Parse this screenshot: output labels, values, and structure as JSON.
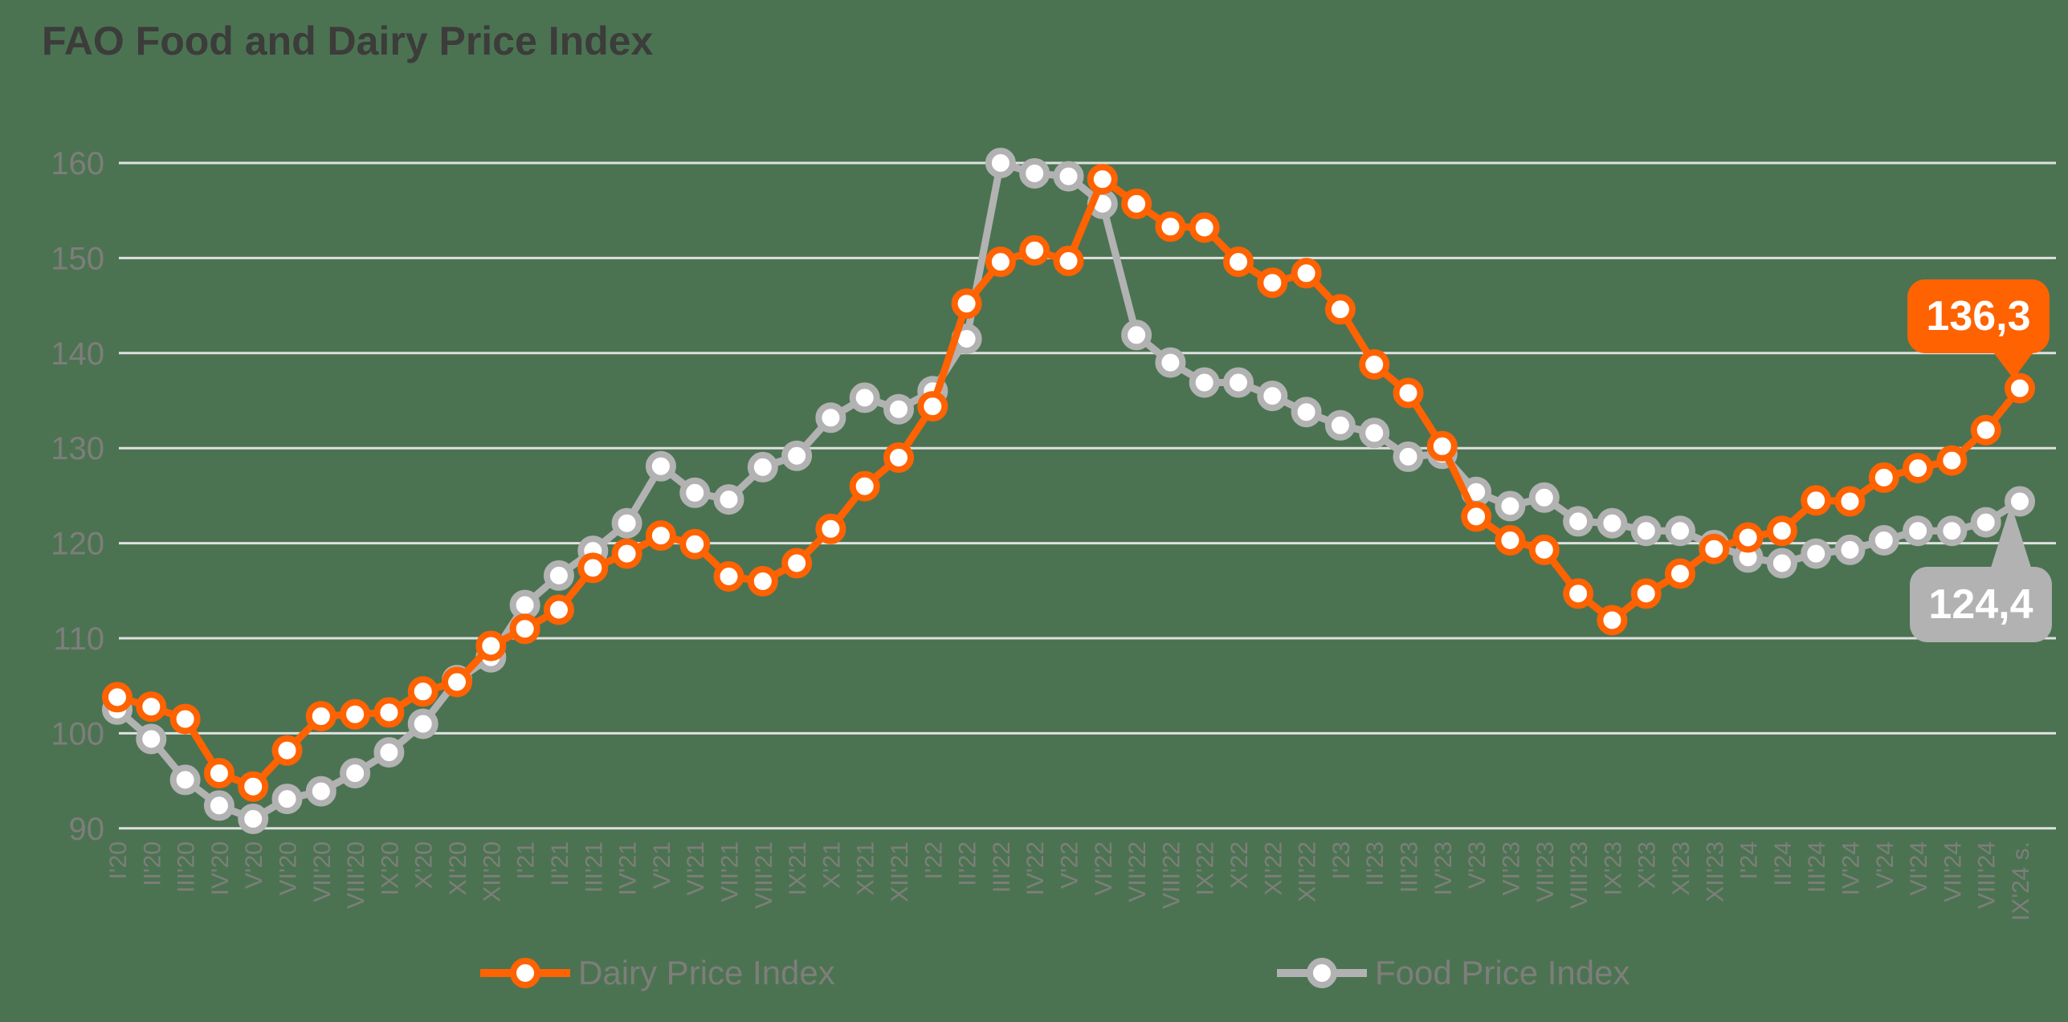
{
  "title": "FAO Food and Dairy Price Index",
  "colors": {
    "background": "#4b7352",
    "dairy_orange": "#ff6200",
    "food_gray": "#b2b2b2",
    "grid": "#e0e0e0",
    "axis_text": "#7e7e7a",
    "legend_text": "#7e7e7a",
    "title_text": "#3c3c3b",
    "marker_fill": "#ffffff",
    "callout_text": "#ffffff"
  },
  "legend": {
    "items": [
      {
        "label": "Dairy Price Index",
        "color": "#ff6200"
      },
      {
        "label": "Food Price Index",
        "color": "#b2b2b2"
      }
    ]
  },
  "callouts": {
    "dairy": {
      "label": "136,3",
      "value": 136.3,
      "series": "Dairy Price Index",
      "category": "IX'24 s."
    },
    "food": {
      "label": "124,4",
      "value": 124.4,
      "series": "Food Price Index",
      "category": "IX'24 s."
    }
  },
  "chart_data": {
    "type": "line",
    "title": "FAO Food and Dairy Price Index",
    "xlabel": "",
    "ylabel": "",
    "ylim": [
      90,
      160
    ],
    "yticks": [
      90,
      100,
      110,
      120,
      130,
      140,
      150,
      160
    ],
    "grid": "horizontal",
    "legend_position": "bottom",
    "categories": [
      "I'20",
      "II'20",
      "III'20",
      "IV'20",
      "V'20",
      "VI'20",
      "VII'20",
      "VIII'20",
      "IX'20",
      "X'20",
      "XI'20",
      "XII'20",
      "I'21",
      "II'21",
      "III'21",
      "IV'21",
      "V'21",
      "VI'21",
      "VII'21",
      "VIII'21",
      "IX'21",
      "X'21",
      "XI'21",
      "XII'21",
      "I'22",
      "II'22",
      "III'22",
      "IV'22",
      "V'22",
      "VI'22",
      "VII'22",
      "VIII'22",
      "IX'22",
      "X'22",
      "XI'22",
      "XII'22",
      "I'23",
      "II'23",
      "III'23",
      "IV'23",
      "V'23",
      "VI'23",
      "VII'23",
      "VIII'23",
      "IX'23",
      "X'23",
      "XI'23",
      "XII'23",
      "I'24",
      "II'24",
      "III'24",
      "IV'24",
      "V'24",
      "VI'24",
      "VII'24",
      "VIII'24",
      "IX'24 s."
    ],
    "series": [
      {
        "name": "Dairy Price Index",
        "color": "#ff6200",
        "values": [
          103.8,
          102.8,
          101.5,
          95.8,
          94.4,
          98.2,
          101.8,
          102.0,
          102.2,
          104.4,
          105.4,
          109.2,
          111.0,
          113.0,
          117.4,
          118.9,
          120.8,
          119.9,
          116.5,
          116.0,
          117.9,
          121.5,
          126.0,
          129.0,
          134.4,
          145.2,
          149.6,
          150.8,
          149.7,
          158.3,
          155.7,
          153.3,
          153.2,
          149.6,
          147.4,
          148.4,
          144.6,
          138.8,
          135.8,
          130.2,
          122.8,
          120.3,
          119.3,
          114.7,
          111.9,
          114.7,
          116.8,
          119.4,
          120.6,
          121.3,
          124.5,
          124.4,
          126.9,
          127.9,
          128.7,
          131.9,
          136.3
        ]
      },
      {
        "name": "Food Price Index",
        "color": "#b2b2b2",
        "values": [
          102.5,
          99.4,
          95.1,
          92.4,
          91.0,
          93.1,
          93.9,
          95.8,
          98.0,
          101.0,
          105.6,
          108.0,
          113.5,
          116.6,
          119.2,
          122.1,
          128.1,
          125.3,
          124.6,
          128.0,
          129.2,
          133.2,
          135.3,
          134.1,
          136.0,
          141.5,
          160.0,
          158.9,
          158.6,
          155.7,
          141.9,
          139.0,
          136.9,
          136.9,
          135.5,
          133.8,
          132.4,
          131.6,
          129.1,
          129.4,
          125.4,
          123.9,
          124.8,
          122.3,
          122.1,
          121.3,
          121.3,
          119.8,
          118.5,
          117.9,
          118.9,
          119.3,
          120.3,
          121.3,
          121.3,
          122.2,
          124.4
        ]
      }
    ],
    "annotations": [
      {
        "text": "136,3",
        "series": "Dairy Price Index",
        "category": "IX'24 s."
      },
      {
        "text": "124,4",
        "series": "Food Price Index",
        "category": "IX'24 s."
      }
    ]
  }
}
